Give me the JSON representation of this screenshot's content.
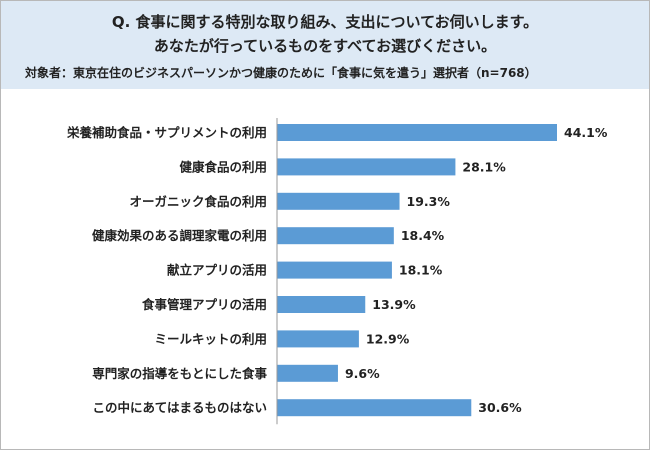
{
  "header": {
    "question_line1": "Q. 食事に関する特別な取り組み、支出についてお伺いします。",
    "question_line2": "あなたが行っているものをすべてお選びください。",
    "target": "対象者：東京在住のビジネスパーソンかつ健康のために「食事に気を遣う」選択者（n=768）"
  },
  "colors": {
    "bar": "#5b9bd5",
    "header_bg": "#dde9f5"
  },
  "chart_data": {
    "type": "bar",
    "orientation": "horizontal",
    "categories": [
      "栄養補助食品・サプリメントの利用",
      "健康食品の利用",
      "オーガニック食品の利用",
      "健康効果のある調理家電の利用",
      "献立アプリの活用",
      "食事管理アプリの活用",
      "ミールキットの利用",
      "専門家の指導をもとにした食事",
      "この中にあてはまるものはない"
    ],
    "values": [
      44.1,
      28.1,
      19.3,
      18.4,
      18.1,
      13.9,
      12.9,
      9.6,
      30.6
    ],
    "value_labels": [
      "44.1%",
      "28.1%",
      "19.3%",
      "18.4%",
      "18.1%",
      "13.9%",
      "12.9%",
      "9.6%",
      "30.6%"
    ],
    "unit": "%",
    "xlim": [
      0,
      44.1
    ],
    "grid": false,
    "legend": "none",
    "title": "",
    "xlabel": "",
    "ylabel": ""
  }
}
